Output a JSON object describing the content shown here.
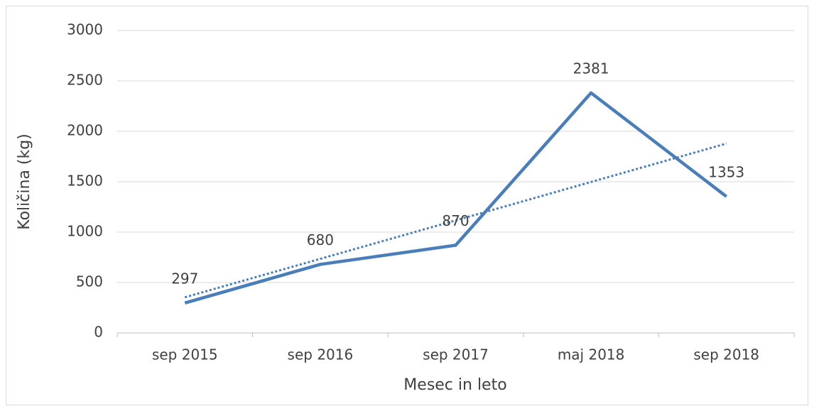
{
  "chart_data": {
    "type": "line",
    "x_label": "Mesec in leto",
    "y_label": "Količina (kg)",
    "categories": [
      "sep 2015",
      "sep 2016",
      "sep 2017",
      "maj 2018",
      "sep 2018"
    ],
    "values": [
      297,
      680,
      870,
      2381,
      1353
    ],
    "color": "#4a7ebb",
    "trendline": "linear",
    "ylim": [
      0,
      3000
    ],
    "yticks": [
      0,
      500,
      1000,
      1500,
      2000,
      2500,
      3000
    ],
    "grid": true,
    "data_labels": true
  }
}
